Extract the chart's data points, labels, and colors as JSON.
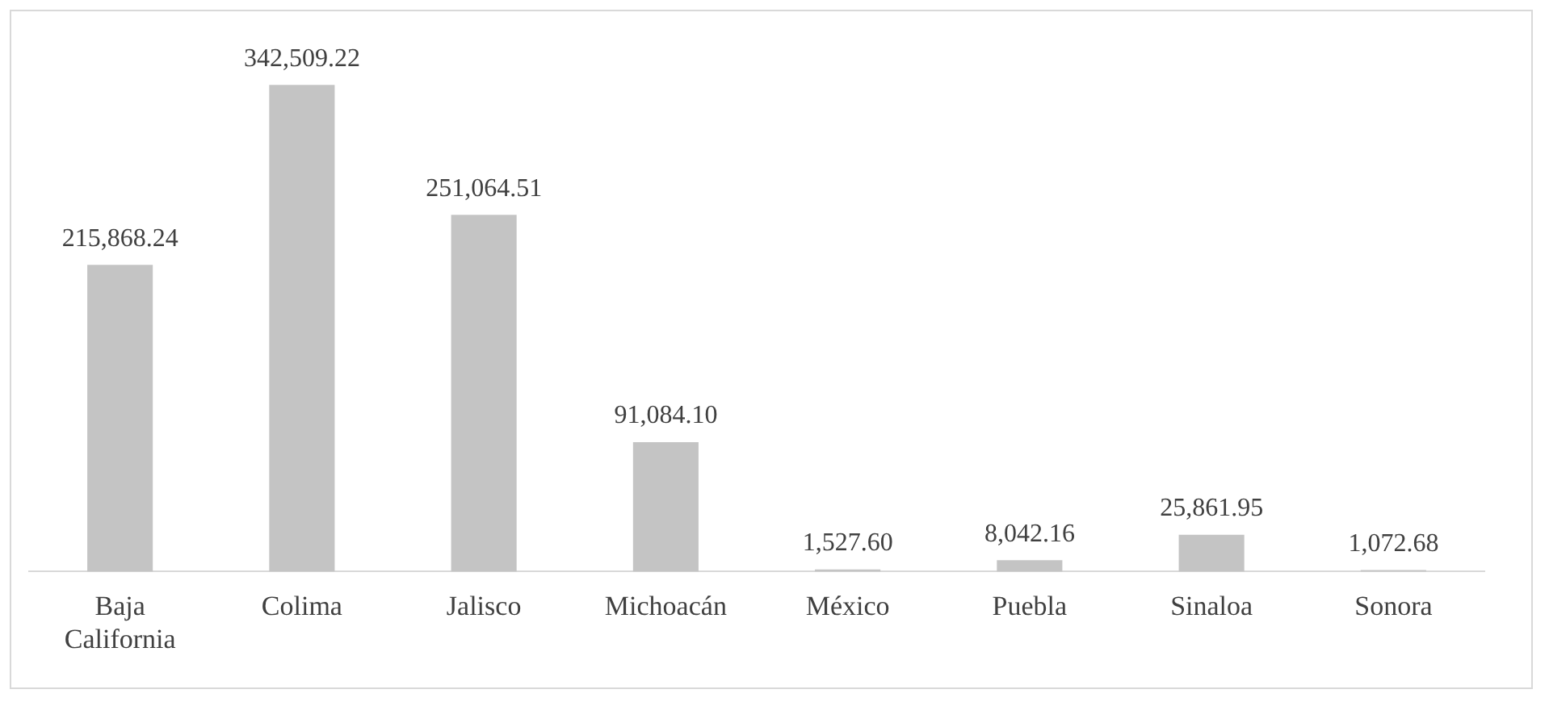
{
  "chart_data": {
    "type": "bar",
    "categories": [
      "Baja California",
      "Colima",
      "Jalisco",
      "Michoacán",
      "México",
      "Puebla",
      "Sinaloa",
      "Sonora"
    ],
    "values": [
      215868.24,
      342509.22,
      251064.51,
      91084.1,
      1527.6,
      8042.16,
      25861.95,
      1072.68
    ],
    "value_labels": [
      "215,868.24",
      "342,509.22",
      "251,064.51",
      "91,084.10",
      "1,527.60",
      "8,042.16",
      "25,861.95",
      "1,072.68"
    ],
    "color": "#c4c4c4",
    "grid": false,
    "legend": false
  }
}
